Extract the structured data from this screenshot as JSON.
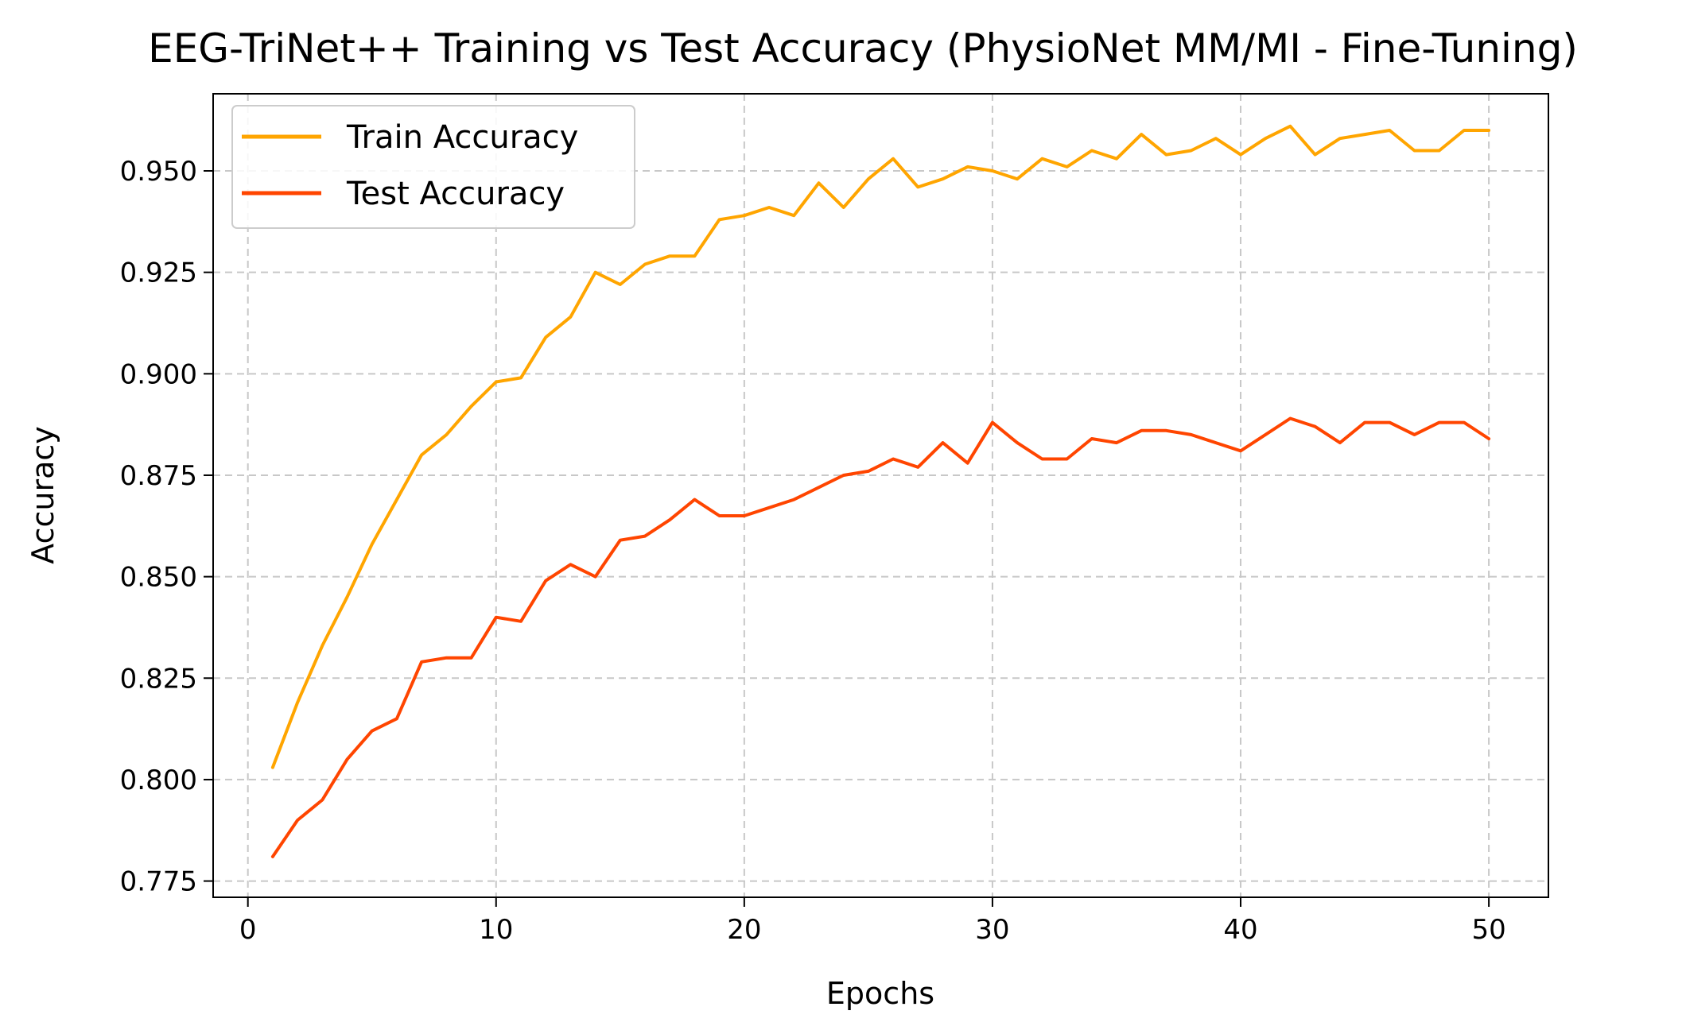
{
  "chart_data": {
    "type": "line",
    "title": "EEG-TriNet++ Training vs Test Accuracy (PhysioNet MM/MI - Fine-Tuning)",
    "xlabel": "Epochs",
    "ylabel": "Accuracy",
    "xlim": [
      -1.4,
      52.4
    ],
    "ylim": [
      0.771,
      0.969
    ],
    "xticks": [
      0,
      10,
      20,
      30,
      40,
      50
    ],
    "yticks": [
      0.775,
      0.8,
      0.825,
      0.85,
      0.875,
      0.9,
      0.925,
      0.95
    ],
    "ytick_labels": [
      "0.775",
      "0.800",
      "0.825",
      "0.850",
      "0.875",
      "0.900",
      "0.925",
      "0.950"
    ],
    "grid": true,
    "legend_position": "upper-left",
    "x": [
      1,
      2,
      3,
      4,
      5,
      6,
      7,
      8,
      9,
      10,
      11,
      12,
      13,
      14,
      15,
      16,
      17,
      18,
      19,
      20,
      21,
      22,
      23,
      24,
      25,
      26,
      27,
      28,
      29,
      30,
      31,
      32,
      33,
      34,
      35,
      36,
      37,
      38,
      39,
      40,
      41,
      42,
      43,
      44,
      45,
      46,
      47,
      48,
      49,
      50
    ],
    "series": [
      {
        "name": "Train Accuracy",
        "color": "#FFA500",
        "values": [
          0.803,
          0.819,
          0.833,
          0.845,
          0.858,
          0.869,
          0.88,
          0.885,
          0.892,
          0.898,
          0.899,
          0.909,
          0.914,
          0.925,
          0.922,
          0.927,
          0.929,
          0.929,
          0.938,
          0.939,
          0.941,
          0.939,
          0.947,
          0.941,
          0.948,
          0.953,
          0.946,
          0.948,
          0.951,
          0.95,
          0.948,
          0.953,
          0.951,
          0.955,
          0.953,
          0.959,
          0.954,
          0.955,
          0.958,
          0.954,
          0.958,
          0.961,
          0.954,
          0.958,
          0.959,
          0.96,
          0.955,
          0.955,
          0.96,
          0.96
        ]
      },
      {
        "name": "Test Accuracy",
        "color": "#FF4500",
        "values": [
          0.781,
          0.79,
          0.795,
          0.805,
          0.812,
          0.815,
          0.829,
          0.83,
          0.83,
          0.84,
          0.839,
          0.849,
          0.853,
          0.85,
          0.859,
          0.86,
          0.864,
          0.869,
          0.865,
          0.865,
          0.867,
          0.869,
          0.872,
          0.875,
          0.876,
          0.879,
          0.877,
          0.883,
          0.878,
          0.888,
          0.883,
          0.879,
          0.879,
          0.884,
          0.883,
          0.886,
          0.886,
          0.885,
          0.883,
          0.881,
          0.885,
          0.889,
          0.887,
          0.883,
          0.888,
          0.888,
          0.885,
          0.888,
          0.888,
          0.884
        ]
      }
    ]
  }
}
